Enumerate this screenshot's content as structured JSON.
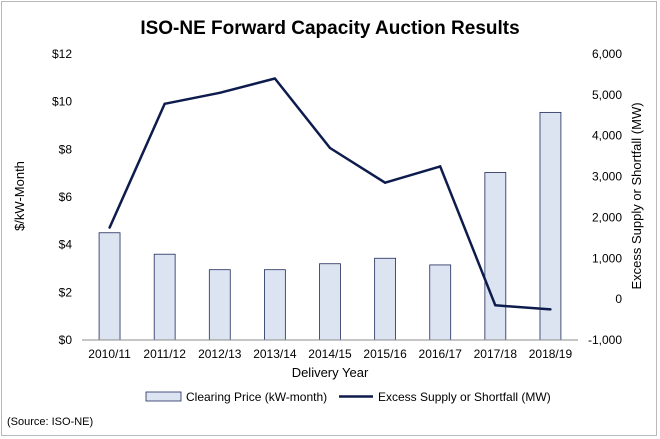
{
  "chart_data": {
    "type": "bar",
    "title": "ISO-NE Forward Capacity Auction Results",
    "xlabel": "Delivery Year",
    "ylabel": "$/kW-Month",
    "y2label": "Excess Supply or Shortfall (MW)",
    "categories": [
      "2010/11",
      "2011/12",
      "2012/13",
      "2013/14",
      "2014/15",
      "2015/16",
      "2016/17",
      "2017/18",
      "2018/19"
    ],
    "ylim": [
      0,
      12
    ],
    "y2lim": [
      -1000,
      6000
    ],
    "y_ticks": [
      "$0",
      "$2",
      "$4",
      "$6",
      "$8",
      "$10",
      "$12"
    ],
    "y_tick_values": [
      0,
      2,
      4,
      6,
      8,
      10,
      12
    ],
    "y2_ticks": [
      "-1,000",
      "0",
      "1,000",
      "2,000",
      "3,000",
      "4,000",
      "5,000",
      "6,000"
    ],
    "y2_tick_values": [
      -1000,
      0,
      1000,
      2000,
      3000,
      4000,
      5000,
      6000
    ],
    "grid": false,
    "legend_position": "bottom",
    "series": [
      {
        "name": "Clearing Price (kW-month)",
        "type": "bar",
        "axis": "left",
        "color": "#dce3f1",
        "edge_color": "#1f2a5c",
        "values": [
          4.5,
          3.6,
          2.95,
          2.95,
          3.2,
          3.43,
          3.15,
          7.03,
          9.55
        ]
      },
      {
        "name": "Excess Supply or Shortfall (MW)",
        "type": "line",
        "axis": "right",
        "color": "#0e1c4d",
        "values": [
          1750,
          4780,
          5050,
          5400,
          3700,
          2850,
          3250,
          -150,
          -250
        ]
      }
    ]
  },
  "source_note": "(Source: ISO-NE)"
}
